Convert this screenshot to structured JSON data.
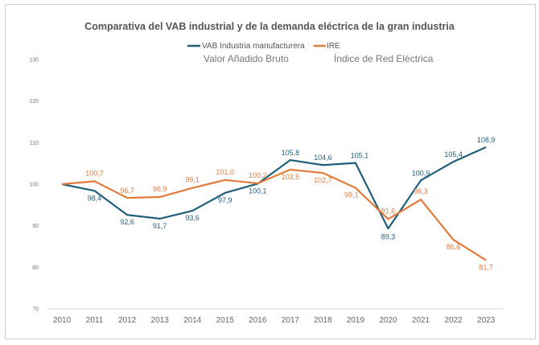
{
  "chart_data": {
    "type": "line",
    "title": "Comparativa del VAB industrial y de la demanda eléctrica de la gran industria",
    "annotations": [
      "Valor Añadido Bruto",
      "Índice de Red Eléctrica"
    ],
    "categories": [
      "2010",
      "2011",
      "2012",
      "2013",
      "2014",
      "2015",
      "2016",
      "2017",
      "2018",
      "2019",
      "2020",
      "2021",
      "2022",
      "2023"
    ],
    "ylim": [
      70,
      130
    ],
    "yticks": [
      70,
      80,
      90,
      100,
      110,
      120,
      130
    ],
    "grid": false,
    "legend_position": "top",
    "series": [
      {
        "name": "VAB Industria manufacturera",
        "color": "#1f5f7a",
        "values": [
          100,
          98.4,
          92.6,
          91.7,
          93.6,
          97.9,
          100.1,
          105.8,
          104.6,
          105.1,
          89.3,
          100.9,
          105.4,
          108.9
        ],
        "labels": [
          "",
          "98,4",
          "92,6",
          "91,7",
          "93,6",
          "97,9",
          "100,1",
          "105,8",
          "104,6",
          "105,1",
          "89,3",
          "100,9",
          "105,4",
          "108,9"
        ]
      },
      {
        "name": "IRE",
        "color": "#e07b3c",
        "values": [
          100,
          100.7,
          96.7,
          96.9,
          99.1,
          101.0,
          100.2,
          103.5,
          102.7,
          99.1,
          91.6,
          96.3,
          86.6,
          81.7
        ],
        "labels": [
          "",
          "100,7",
          "96,7",
          "96,9",
          "99,1",
          "101,0",
          "100,2",
          "103,5",
          "102,7",
          "99,1",
          "91,6",
          "96,3",
          "86,6",
          "81,7"
        ]
      }
    ]
  }
}
